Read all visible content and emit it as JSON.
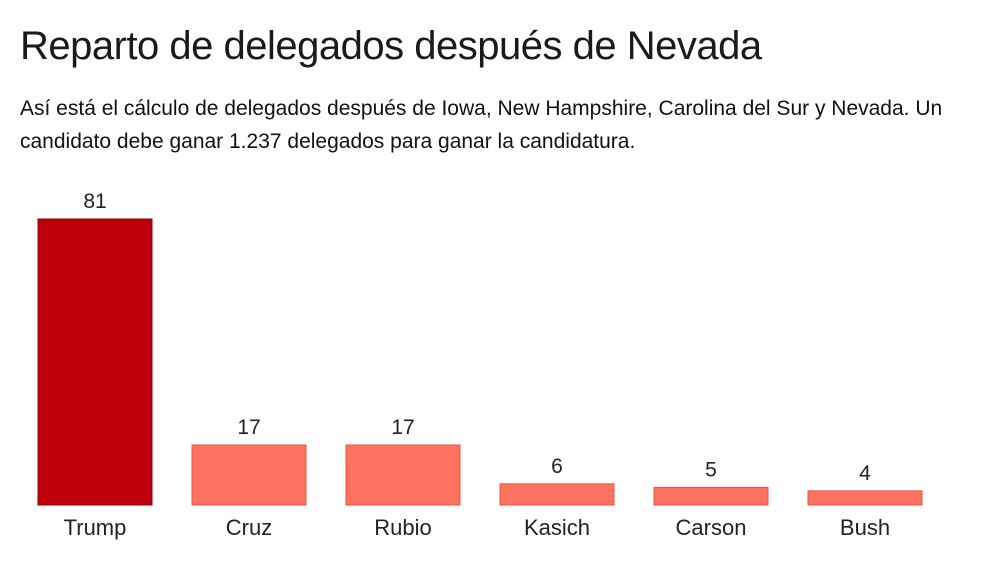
{
  "chart_data": {
    "type": "bar",
    "title": "Reparto de delegados después de Nevada",
    "subtitle": "Así está el cálculo de delegados después de Iowa, New Hampshire, Carolina del Sur y Nevada. Un candidato debe ganar 1.237 delegados para ganar la candidatura.",
    "categories": [
      "Trump",
      "Cruz",
      "Rubio",
      "Kasich",
      "Carson",
      "Bush"
    ],
    "values": [
      81,
      17,
      17,
      6,
      5,
      4
    ],
    "colors": [
      "#bd0009",
      "#ff7160",
      "#ff7160",
      "#ff7160",
      "#ff7160",
      "#ff7160"
    ],
    "stroke_colors": [
      "#8f0007",
      "#e8553f",
      "#e8553f",
      "#e8553f",
      "#e8553f",
      "#e8553f"
    ],
    "xlabel": "",
    "ylabel": "",
    "ylim": [
      0,
      81
    ],
    "grid": false,
    "legend": "none"
  }
}
